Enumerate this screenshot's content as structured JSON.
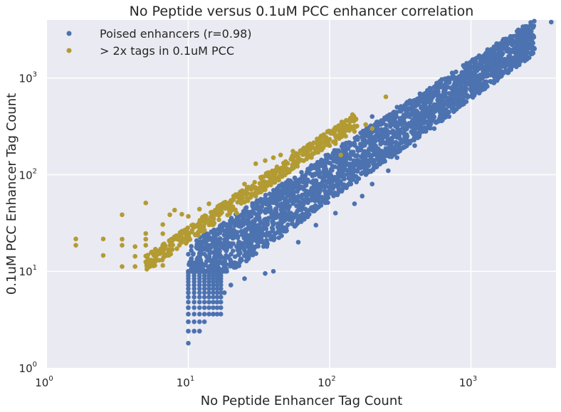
{
  "chart_data": {
    "type": "scatter",
    "title": "No Peptide versus 0.1uM PCC enhancer correlation",
    "xlabel": "No Peptide Enhancer Tag Count",
    "ylabel": "0.1uM PCC Enhancer Tag Count",
    "xscale": "log",
    "yscale": "log",
    "xlim": [
      1,
      4000
    ],
    "ylim": [
      1,
      4000
    ],
    "xticks": [
      {
        "base": "10",
        "exp": "0"
      },
      {
        "base": "10",
        "exp": "1"
      },
      {
        "base": "10",
        "exp": "2"
      },
      {
        "base": "10",
        "exp": "3"
      }
    ],
    "yticks": [
      {
        "base": "10",
        "exp": "0"
      },
      {
        "base": "10",
        "exp": "1"
      },
      {
        "base": "10",
        "exp": "2"
      },
      {
        "base": "10",
        "exp": "3"
      }
    ],
    "grid": true,
    "legend_position": "top-left",
    "background": "#eaeaf2",
    "series": [
      {
        "name": "Poised enhancers (r=0.98)",
        "color": "#4c72b0",
        "points": [
          [
            3700,
            3800
          ],
          [
            2300,
            2250
          ],
          [
            1900,
            1500
          ],
          [
            1500,
            1350
          ],
          [
            1300,
            1150
          ],
          [
            1100,
            1050
          ],
          [
            950,
            900
          ],
          [
            800,
            700
          ],
          [
            600,
            550
          ],
          [
            500,
            480
          ],
          [
            400,
            380
          ],
          [
            300,
            270
          ],
          [
            200,
            190
          ],
          [
            150,
            140
          ],
          [
            100,
            100
          ],
          [
            70,
            65
          ],
          [
            50,
            45
          ],
          [
            30,
            28
          ],
          [
            20,
            18
          ],
          [
            15,
            13
          ],
          [
            10,
            1.8
          ],
          [
            10,
            2.4
          ],
          [
            11,
            2.4
          ],
          [
            12,
            2.4
          ],
          [
            10,
            3.0
          ],
          [
            13,
            3.0
          ],
          [
            10,
            3.6
          ],
          [
            15,
            3.6
          ],
          [
            10,
            4.2
          ],
          [
            16,
            4.8
          ],
          [
            10,
            6.0
          ],
          [
            18,
            6.0
          ],
          [
            20,
            7.2
          ],
          [
            25,
            8.4
          ],
          [
            35,
            9.5
          ],
          [
            40,
            10
          ],
          [
            60,
            20
          ],
          [
            80,
            30
          ],
          [
            110,
            40
          ],
          [
            150,
            50
          ],
          [
            170,
            60
          ],
          [
            200,
            80
          ],
          [
            260,
            110
          ],
          [
            300,
            150
          ],
          [
            400,
            200
          ],
          [
            550,
            300
          ],
          [
            700,
            400
          ],
          [
            850,
            550
          ],
          [
            300,
            500
          ],
          [
            200,
            400
          ],
          [
            120,
            300
          ],
          [
            90,
            250
          ],
          [
            60,
            150
          ],
          [
            45,
            100
          ],
          [
            30,
            60
          ],
          [
            25,
            40
          ],
          [
            18,
            30
          ],
          [
            12,
            20
          ],
          [
            10,
            15
          ],
          [
            10,
            10
          ]
        ]
      },
      {
        "name": "> 2x tags in 0.1uM PCC",
        "color": "#b39b33",
        "points": [
          [
            1.6,
            21.6
          ],
          [
            1.6,
            18.6
          ],
          [
            2.5,
            21.6
          ],
          [
            2.5,
            14.6
          ],
          [
            3.4,
            38.5
          ],
          [
            3.4,
            21.5
          ],
          [
            3.4,
            18.6
          ],
          [
            3.4,
            11.2
          ],
          [
            4.2,
            18
          ],
          [
            4.2,
            14.3
          ],
          [
            4.2,
            11.2
          ],
          [
            5.0,
            51
          ],
          [
            5.0,
            24.6
          ],
          [
            5.0,
            21.5
          ],
          [
            5.0,
            18.6
          ],
          [
            5.0,
            14.4
          ],
          [
            5.0,
            12.5
          ],
          [
            5.8,
            14.4
          ],
          [
            5.8,
            11.5
          ],
          [
            6.6,
            30.5
          ],
          [
            6.6,
            24.5
          ],
          [
            6.6,
            15.5
          ],
          [
            6.6,
            11.5
          ],
          [
            7.4,
            38.5
          ],
          [
            8,
            43
          ],
          [
            9,
            39
          ],
          [
            10,
            37
          ],
          [
            12,
            44
          ],
          [
            14,
            50
          ],
          [
            18,
            50
          ],
          [
            20,
            54
          ],
          [
            22,
            40
          ],
          [
            25,
            52
          ],
          [
            28,
            63
          ],
          [
            30,
            60
          ],
          [
            35,
            70
          ],
          [
            40,
            100
          ],
          [
            45,
            110
          ],
          [
            50,
            115
          ],
          [
            55,
            120
          ],
          [
            60,
            135
          ],
          [
            70,
            150
          ],
          [
            80,
            170
          ],
          [
            90,
            190
          ],
          [
            100,
            200
          ],
          [
            110,
            210
          ],
          [
            120,
            160
          ],
          [
            130,
            250
          ],
          [
            150,
            280
          ],
          [
            180,
            330
          ],
          [
            200,
            300
          ],
          [
            250,
            640
          ],
          [
            40,
            150
          ],
          [
            25,
            80
          ],
          [
            30,
            130
          ],
          [
            35,
            140
          ],
          [
            45,
            160
          ],
          [
            55,
            175
          ],
          [
            65,
            185
          ],
          [
            75,
            195
          ]
        ]
      }
    ]
  }
}
